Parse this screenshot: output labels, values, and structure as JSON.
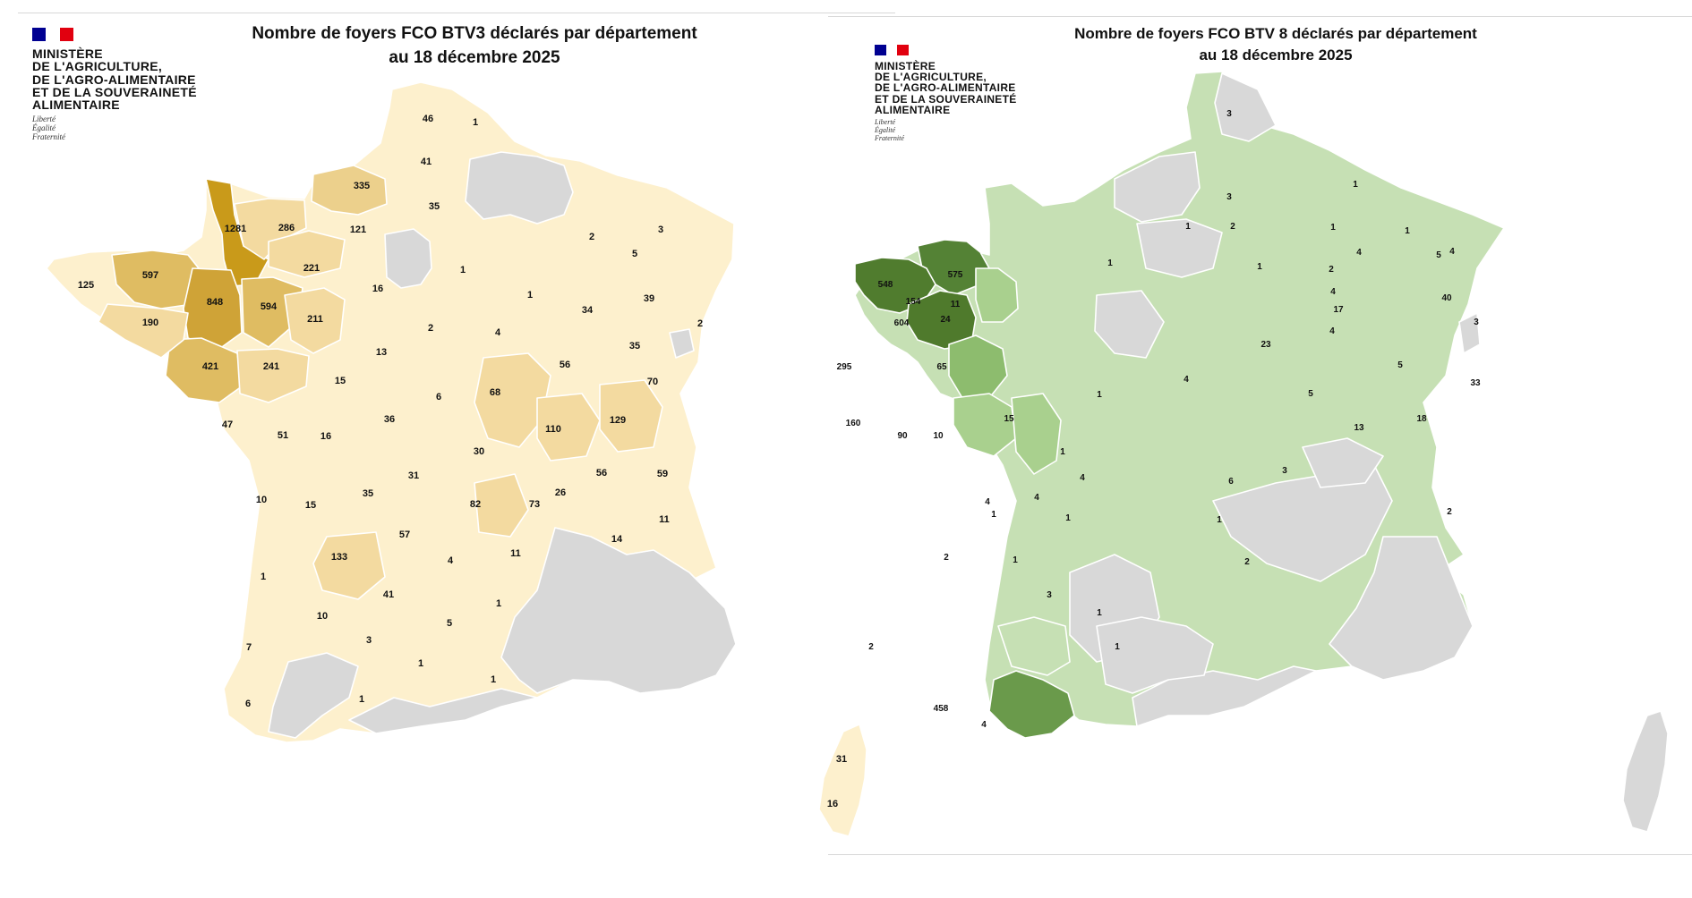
{
  "colors": {
    "background": "#ffffff",
    "no_outbreak_grey": "#d8d8d8",
    "btv3_scale": [
      "#fdf0cd",
      "#f9e4b0",
      "#ecd08c",
      "#dfbc62",
      "#c99a1a"
    ],
    "btv8_scale": [
      "#c6e0b4",
      "#a9d08e",
      "#8dbc6e",
      "#548235",
      "#507c2e"
    ],
    "flag": [
      "#000091",
      "#ffffff",
      "#e1000f"
    ]
  },
  "left_panel": {
    "title_line1": "Nombre de foyers FCO BTV3 déclarés par département",
    "title_line2": "au 18 décembre 2025",
    "logo": {
      "ministry_lines": [
        "MINISTÈRE",
        "DE L'AGRICULTURE,",
        "DE L'AGRO-ALIMENTAIRE",
        "ET DE LA SOUVERAINETÉ",
        "ALIMENTAIRE"
      ],
      "motto": [
        "Liberté",
        "Égalité",
        "Fraternité"
      ]
    },
    "map_labels": [
      "46",
      "1",
      "41",
      "35",
      "335",
      "1281",
      "286",
      "121",
      "2",
      "3",
      "125",
      "597",
      "221",
      "16",
      "1",
      "5",
      "1",
      "848",
      "594",
      "211",
      "34",
      "39",
      "190",
      "2",
      "4",
      "35",
      "2",
      "13",
      "421",
      "241",
      "56",
      "15",
      "6",
      "68",
      "70",
      "47",
      "51",
      "16",
      "36",
      "110",
      "129",
      "30",
      "31",
      "56",
      "59",
      "10",
      "15",
      "35",
      "26",
      "82",
      "73",
      "11",
      "57",
      "14",
      "133",
      "4",
      "11",
      "1",
      "41",
      "1",
      "10",
      "5",
      "7",
      "3",
      "1",
      "1",
      "1",
      "6",
      "31",
      "16"
    ]
  },
  "right_panel": {
    "title_line1": "Nombre de foyers FCO BTV 8 déclarés par département",
    "title_line2": "au 18 décembre 2025",
    "logo": {
      "ministry_lines": [
        "MINISTÈRE",
        "DE L'AGRICULTURE,",
        "DE L'AGRO-ALIMENTAIRE",
        "ET DE LA SOUVERAINETÉ",
        "ALIMENTAIRE"
      ],
      "motto": [
        "Liberté",
        "Égalité",
        "Fraternité"
      ]
    },
    "map_labels": [
      "3",
      "3",
      "1",
      "2",
      "1",
      "575",
      "1",
      "4",
      "1",
      "548",
      "1",
      "2",
      "1",
      "5",
      "4",
      "154",
      "11",
      "4",
      "17",
      "40",
      "604",
      "24",
      "4",
      "3",
      "23",
      "295",
      "65",
      "5",
      "33",
      "4",
      "1",
      "5",
      "160",
      "90",
      "10",
      "15",
      "13",
      "18",
      "1",
      "4",
      "6",
      "3",
      "4",
      "4",
      "1",
      "1",
      "1",
      "2",
      "2",
      "1",
      "2",
      "3",
      "1",
      "2",
      "1",
      "458",
      "4"
    ]
  }
}
